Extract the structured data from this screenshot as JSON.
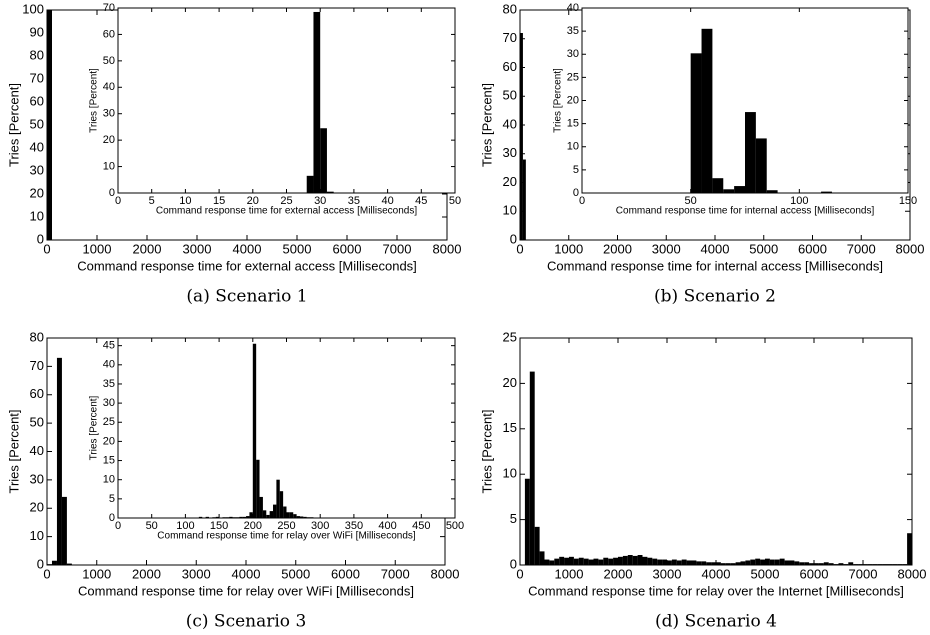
{
  "chart_data": [
    {
      "type": "histogram",
      "caption": "(a) Scenario 1",
      "xlabel": "Command response time for external access [Milliseconds]",
      "ylabel": "Tries [Percent]",
      "color": "#000000",
      "xlim": [
        0,
        8000
      ],
      "xticks": [
        0,
        1000,
        2000,
        3000,
        4000,
        5000,
        6000,
        7000,
        8000
      ],
      "ylim": [
        0,
        100
      ],
      "yticks": [
        0,
        10,
        20,
        30,
        40,
        50,
        60,
        70,
        80,
        90,
        100
      ],
      "bins": [
        0,
        100
      ],
      "values": [
        100
      ]
    },
    {
      "type": "histogram",
      "xlabel": "Command response time for external access [Milliseconds]",
      "ylabel": "Tries [Percent]",
      "color": "#000000",
      "xlim": [
        0,
        50
      ],
      "xticks": [
        0,
        5,
        10,
        15,
        20,
        25,
        30,
        35,
        40,
        45,
        50
      ],
      "ylim": [
        0,
        70
      ],
      "yticks": [
        0,
        10,
        20,
        30,
        40,
        50,
        60,
        70
      ],
      "bins": [
        28,
        29,
        30,
        31,
        32
      ],
      "values": [
        6.5,
        68.5,
        24.5,
        0.5
      ]
    },
    {
      "type": "histogram",
      "caption": "(b) Scenario 2",
      "xlabel": "Command response time for internal access [Milliseconds]",
      "ylabel": "Tries [Percent]",
      "color": "#000000",
      "xlim": [
        0,
        8000
      ],
      "xticks": [
        0,
        1000,
        2000,
        3000,
        4000,
        5000,
        6000,
        7000,
        8000
      ],
      "ylim": [
        0,
        80
      ],
      "yticks": [
        0,
        10,
        20,
        30,
        40,
        50,
        60,
        70,
        80
      ],
      "bins": [
        0,
        60,
        120
      ],
      "values": [
        72,
        28
      ]
    },
    {
      "type": "histogram",
      "xlabel": "Command response time for internal access [Milliseconds]",
      "ylabel": "Tries [Percent]",
      "color": "#000000",
      "xlim": [
        0,
        150
      ],
      "xticks": [
        0,
        50,
        100,
        150
      ],
      "ylim": [
        0,
        40
      ],
      "yticks": [
        0,
        5,
        10,
        15,
        20,
        25,
        30,
        35,
        40
      ],
      "bins": [
        50,
        55,
        60,
        65,
        70,
        75,
        80,
        85,
        90,
        95,
        100,
        105,
        110,
        115
      ],
      "values": [
        30.2,
        35.5,
        3.2,
        0.8,
        1.5,
        17.5,
        11.8,
        0.6,
        0.1,
        0.1,
        0.1,
        0,
        0.3
      ]
    },
    {
      "type": "histogram",
      "caption": "(c) Scenario 3",
      "xlabel": "Command response time for relay over WiFi [Milliseconds]",
      "ylabel": "Tries [Percent]",
      "color": "#000000",
      "xlim": [
        0,
        8000
      ],
      "xticks": [
        0,
        1000,
        2000,
        3000,
        4000,
        5000,
        6000,
        7000,
        8000
      ],
      "ylim": [
        0,
        80
      ],
      "yticks": [
        0,
        10,
        20,
        30,
        40,
        50,
        60,
        70,
        80
      ],
      "bins": [
        0,
        100,
        200,
        300,
        400,
        500
      ],
      "values": [
        0.3,
        1.5,
        73,
        24,
        0.5
      ]
    },
    {
      "type": "histogram",
      "xlabel": "Command response time for relay over WiFi [Milliseconds]",
      "ylabel": "Tries [Percent]",
      "color": "#000000",
      "xlim": [
        0,
        500
      ],
      "xticks": [
        0,
        50,
        100,
        150,
        200,
        250,
        300,
        350,
        400,
        450,
        500
      ],
      "ylim": [
        0,
        47
      ],
      "yticks": [
        0,
        5,
        10,
        15,
        20,
        25,
        30,
        35,
        40,
        45
      ],
      "bins": [
        120,
        125,
        130,
        135,
        140,
        145,
        150,
        155,
        160,
        165,
        170,
        175,
        180,
        185,
        190,
        195,
        200,
        205,
        210,
        215,
        220,
        225,
        230,
        235,
        240,
        245,
        250,
        255,
        260,
        265,
        270,
        275,
        280,
        285,
        290,
        295,
        300
      ],
      "values": [
        0.3,
        0.1,
        0.3,
        0.1,
        0.2,
        0.3,
        0.1,
        0.2,
        0.2,
        0.3,
        0.2,
        0.2,
        0.3,
        0.3,
        0.5,
        1.5,
        45.5,
        15.2,
        5.5,
        2.0,
        0.8,
        1.8,
        3.5,
        10.0,
        7.0,
        3.0,
        1.5,
        1.5,
        1.0,
        0.5,
        0.4,
        0.3,
        0.2,
        0.2,
        0.1,
        0.1
      ]
    },
    {
      "type": "histogram",
      "caption": "(d) Scenario 4",
      "xlabel": "Command response time for relay over the Internet [Milliseconds]",
      "ylabel": "Tries [Percent]",
      "color": "#000000",
      "xlim": [
        0,
        8000
      ],
      "xticks": [
        0,
        1000,
        2000,
        3000,
        4000,
        5000,
        6000,
        7000,
        8000
      ],
      "ylim": [
        0,
        25
      ],
      "yticks": [
        0,
        5,
        10,
        15,
        20,
        25
      ],
      "bins": [
        100,
        200,
        300,
        400,
        500,
        600,
        700,
        800,
        900,
        1000,
        1100,
        1200,
        1300,
        1400,
        1500,
        1600,
        1700,
        1800,
        1900,
        2000,
        2100,
        2200,
        2300,
        2400,
        2500,
        2600,
        2700,
        2800,
        2900,
        3000,
        3100,
        3200,
        3300,
        3400,
        3500,
        3600,
        3700,
        3800,
        3900,
        4000,
        4100,
        4200,
        4300,
        4400,
        4500,
        4600,
        4700,
        4800,
        4900,
        5000,
        5100,
        5200,
        5300,
        5400,
        5500,
        5600,
        5700,
        5800,
        5900,
        6000,
        6100,
        6200,
        6300,
        6400,
        6500,
        6600,
        6700,
        6800,
        6900,
        7000,
        7100,
        7200,
        7300,
        7400,
        7500,
        7600,
        7700,
        7800,
        7900,
        8000
      ],
      "values": [
        9.5,
        21.3,
        4.2,
        1.5,
        0.6,
        0.5,
        0.7,
        0.9,
        0.8,
        0.9,
        0.7,
        0.8,
        0.7,
        0.6,
        0.7,
        0.6,
        0.8,
        0.7,
        0.8,
        0.9,
        1.0,
        1.1,
        1.0,
        1.1,
        0.9,
        0.8,
        0.7,
        0.6,
        0.6,
        0.5,
        0.6,
        0.5,
        0.6,
        0.5,
        0.5,
        0.4,
        0.4,
        0.3,
        0.3,
        0.3,
        0.2,
        0.2,
        0.2,
        0.3,
        0.4,
        0.5,
        0.6,
        0.7,
        0.6,
        0.7,
        0.6,
        0.6,
        0.7,
        0.5,
        0.5,
        0.4,
        0.3,
        0.3,
        0.2,
        0.2,
        0.2,
        0.3,
        0.2,
        0.1,
        0.2,
        0.1,
        0.3,
        0.1,
        0.1,
        0.1,
        0.1,
        0.1,
        0.1,
        0.1,
        0.1,
        0.1,
        0.1,
        0.1,
        3.5
      ]
    }
  ]
}
